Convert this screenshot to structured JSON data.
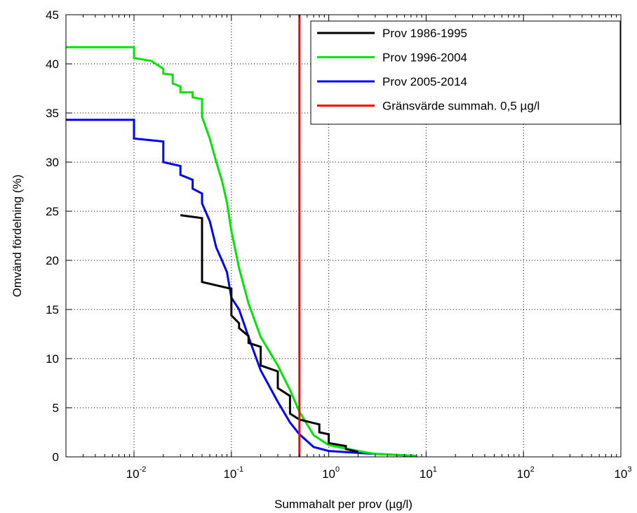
{
  "chart_data": {
    "type": "line",
    "title": "",
    "xlabel": "Summahalt per prov (µg/l)",
    "ylabel": "Omvänd fördelning (%)",
    "xscale": "log",
    "xlim": [
      0.002,
      1000
    ],
    "ylim": [
      0,
      45
    ],
    "grid": true,
    "legend_position": "top-right",
    "x_tick_labels": [
      {
        "base": "10",
        "exp": "-2",
        "value": 0.01
      },
      {
        "base": "10",
        "exp": "-1",
        "value": 0.1
      },
      {
        "base": "10",
        "exp": "0",
        "value": 1
      },
      {
        "base": "10",
        "exp": "1",
        "value": 10
      },
      {
        "base": "10",
        "exp": "2",
        "value": 100
      },
      {
        "base": "10",
        "exp": "3",
        "value": 1000
      }
    ],
    "y_tick_labels": [
      "0",
      "5",
      "10",
      "15",
      "20",
      "25",
      "30",
      "35",
      "40",
      "45"
    ],
    "y_tick_values": [
      0,
      5,
      10,
      15,
      20,
      25,
      30,
      35,
      40,
      45
    ],
    "series": [
      {
        "name": "Prov 1986-1995",
        "color": "#000000",
        "x": [
          0.03,
          0.05,
          0.05,
          0.1,
          0.1,
          0.12,
          0.12,
          0.15,
          0.15,
          0.2,
          0.2,
          0.3,
          0.3,
          0.4,
          0.4,
          0.5,
          0.8,
          0.8,
          1.0,
          1.0,
          1.5,
          1.5,
          2.0
        ],
        "y": [
          24.6,
          24.3,
          17.8,
          17.1,
          14.4,
          13.6,
          13.1,
          12.3,
          11.6,
          11.2,
          9.3,
          8.7,
          7.0,
          6.2,
          4.4,
          3.8,
          3.3,
          2.5,
          2.3,
          1.4,
          1.1,
          0.8,
          0.5
        ]
      },
      {
        "name": "Prov 1996-2004",
        "color": "#00e600",
        "x": [
          0.002,
          0.01,
          0.01,
          0.015,
          0.015,
          0.02,
          0.02,
          0.025,
          0.025,
          0.03,
          0.03,
          0.04,
          0.04,
          0.05,
          0.05,
          0.06,
          0.07,
          0.08,
          0.09,
          0.1,
          0.12,
          0.15,
          0.2,
          0.3,
          0.4,
          0.5,
          0.7,
          1.0,
          2.0,
          3.0,
          5.0,
          8.0
        ],
        "y": [
          41.7,
          41.7,
          40.6,
          40.3,
          40.3,
          39.5,
          39.0,
          38.9,
          38.0,
          37.7,
          37.1,
          37.1,
          36.6,
          36.4,
          34.6,
          32.4,
          30.0,
          28.1,
          25.9,
          23.0,
          19.2,
          15.6,
          12.2,
          9.3,
          6.8,
          4.6,
          2.2,
          1.2,
          0.6,
          0.3,
          0.2,
          0.1
        ]
      },
      {
        "name": "Prov 2005-2014",
        "color": "#0000ff",
        "x": [
          0.002,
          0.01,
          0.01,
          0.02,
          0.02,
          0.03,
          0.03,
          0.04,
          0.04,
          0.05,
          0.05,
          0.06,
          0.07,
          0.08,
          0.09,
          0.1,
          0.12,
          0.15,
          0.2,
          0.3,
          0.4,
          0.5,
          0.7,
          1.0,
          2.0,
          3.0,
          5.0,
          8.0
        ],
        "y": [
          34.3,
          34.3,
          32.4,
          32.1,
          30.0,
          29.6,
          28.7,
          28.2,
          27.3,
          26.8,
          25.8,
          24.0,
          21.3,
          20.0,
          18.8,
          16.2,
          15.0,
          12.2,
          8.8,
          5.6,
          3.5,
          2.3,
          1.0,
          0.6,
          0.4,
          0.3,
          0.2,
          0.1
        ]
      },
      {
        "name": "Gränsvärde summah. 0,5 µg/l",
        "color": "#ff0000",
        "x": [
          0.5,
          0.5
        ],
        "y": [
          0,
          45
        ]
      }
    ]
  }
}
